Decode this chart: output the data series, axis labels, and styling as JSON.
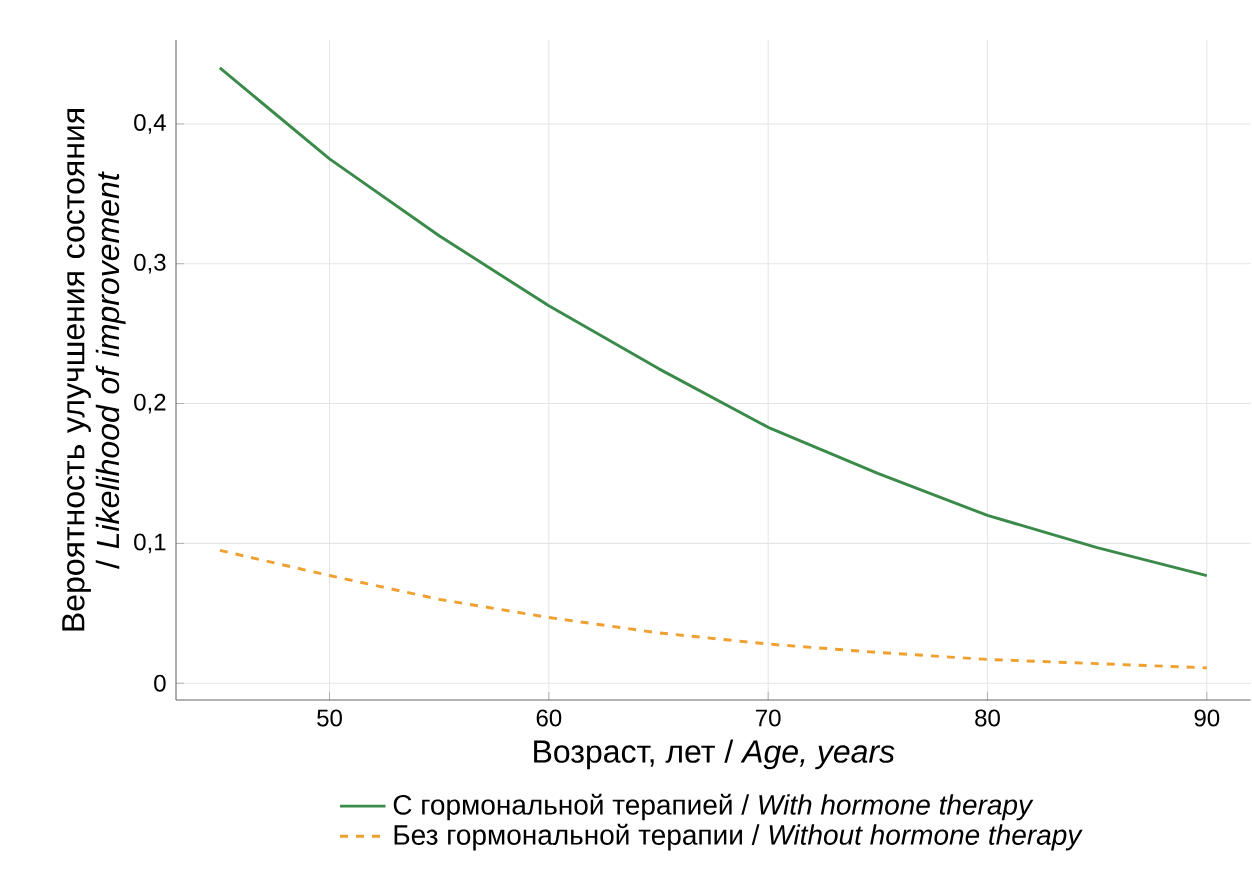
{
  "chart_data": {
    "type": "line",
    "xlabel": "Возраст, лет / *Age, years*",
    "ylabel": "Вероятность улучшения состояния / *Likelihood of improvement*",
    "x": [
      45,
      50,
      55,
      60,
      65,
      70,
      75,
      80,
      85,
      90
    ],
    "series": [
      {
        "name": "С гормональной терапией / *With hormone therapy*",
        "color": "#3a8a4a",
        "line_style": "solid",
        "values": [
          0.44,
          0.375,
          0.32,
          0.27,
          0.225,
          0.183,
          0.15,
          0.12,
          0.097,
          0.077
        ]
      },
      {
        "name": "Без гормональной терапии / *Without hormone therapy*",
        "color": "#f0a030",
        "line_style": "dashed",
        "values": [
          0.095,
          0.077,
          0.06,
          0.047,
          0.036,
          0.028,
          0.022,
          0.017,
          0.014,
          0.011
        ]
      }
    ],
    "xlim": [
      43,
      92
    ],
    "ylim": [
      -0.012,
      0.46
    ],
    "xticks": [
      50,
      60,
      70,
      80,
      90
    ],
    "yticks": [
      {
        "value": 0,
        "label": "0"
      },
      {
        "value": 0.1,
        "label": "0,1"
      },
      {
        "value": 0.2,
        "label": "0,2"
      },
      {
        "value": 0.3,
        "label": "0,3"
      },
      {
        "value": 0.4,
        "label": "0,4"
      }
    ],
    "grid": true,
    "legend": "bottom",
    "marker": "none"
  }
}
